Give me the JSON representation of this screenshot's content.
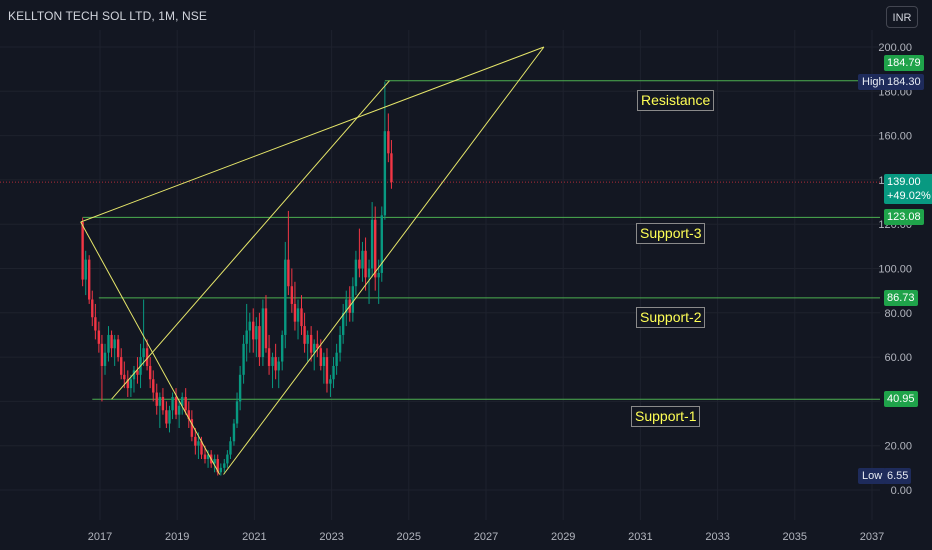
{
  "header": {
    "title": "KELLTON TECH SOL LTD, 1M, NSE",
    "currency": "INR"
  },
  "chart_data": {
    "type": "candlestick",
    "title": "KELLTON TECH SOL LTD, 1M, NSE",
    "yaxis_ticks": [
      "0.00",
      "20.00",
      "40.00",
      "60.00",
      "80.00",
      "100.00",
      "120.00",
      "140.00",
      "160.00",
      "180.00",
      "200.00"
    ],
    "ylim": [
      0,
      200
    ],
    "xaxis_ticks": [
      "2017",
      "2019",
      "2021",
      "2023",
      "2025",
      "2027",
      "2029",
      "2031",
      "2033",
      "2035",
      "2037"
    ],
    "levels": [
      {
        "name": "Resistance",
        "value": 184.79,
        "label": "184.79"
      },
      {
        "name": "Support-3",
        "value": 123.08,
        "label": "123.08"
      },
      {
        "name": "Support-2",
        "value": 86.73,
        "label": "86.73"
      },
      {
        "name": "Support-1",
        "value": 40.95,
        "label": "40.95"
      }
    ],
    "last_price": {
      "value": 139.0,
      "label": "139.00",
      "change": "+49.02%"
    },
    "high": {
      "label": "High",
      "value": "184.30"
    },
    "low": {
      "label": "Low",
      "value": "6.55"
    },
    "trend_lines": [
      {
        "from": [
          2016.5,
          121
        ],
        "to": [
          2020.1,
          7
        ]
      },
      {
        "from": [
          2017.3,
          41
        ],
        "to": [
          2024.5,
          184.8
        ]
      },
      {
        "from": [
          2020.2,
          7
        ],
        "to": [
          2028.5,
          200
        ]
      },
      {
        "from": [
          2016.5,
          121
        ],
        "to": [
          2028.5,
          200
        ]
      }
    ],
    "candles": [
      [
        2016.55,
        121,
        123,
        92,
        95
      ],
      [
        2016.63,
        95,
        108,
        88,
        104
      ],
      [
        2016.72,
        104,
        106,
        84,
        86
      ],
      [
        2016.8,
        86,
        90,
        74,
        78
      ],
      [
        2016.88,
        78,
        84,
        68,
        72
      ],
      [
        2016.97,
        72,
        76,
        62,
        66
      ],
      [
        2017.05,
        66,
        70,
        40,
        56
      ],
      [
        2017.13,
        56,
        66,
        52,
        62
      ],
      [
        2017.22,
        62,
        74,
        58,
        70
      ],
      [
        2017.3,
        70,
        72,
        60,
        64
      ],
      [
        2017.38,
        64,
        70,
        56,
        68
      ],
      [
        2017.47,
        68,
        70,
        58,
        60
      ],
      [
        2017.55,
        60,
        64,
        50,
        52
      ],
      [
        2017.63,
        52,
        58,
        46,
        50
      ],
      [
        2017.72,
        50,
        54,
        42,
        46
      ],
      [
        2017.8,
        46,
        52,
        42,
        50
      ],
      [
        2017.88,
        50,
        56,
        44,
        54
      ],
      [
        2017.97,
        54,
        60,
        48,
        52
      ],
      [
        2018.05,
        52,
        66,
        46,
        60
      ],
      [
        2018.13,
        60,
        86,
        56,
        64
      ],
      [
        2018.22,
        64,
        68,
        54,
        56
      ],
      [
        2018.3,
        56,
        60,
        46,
        50
      ],
      [
        2018.38,
        50,
        54,
        40,
        44
      ],
      [
        2018.47,
        44,
        48,
        34,
        38
      ],
      [
        2018.55,
        38,
        44,
        28,
        42
      ],
      [
        2018.63,
        42,
        46,
        34,
        36
      ],
      [
        2018.72,
        36,
        40,
        28,
        30
      ],
      [
        2018.8,
        30,
        38,
        26,
        36
      ],
      [
        2018.88,
        36,
        44,
        32,
        42
      ],
      [
        2018.97,
        42,
        46,
        32,
        34
      ],
      [
        2019.05,
        34,
        40,
        28,
        38
      ],
      [
        2019.13,
        38,
        44,
        34,
        42
      ],
      [
        2019.22,
        42,
        46,
        34,
        36
      ],
      [
        2019.3,
        36,
        40,
        28,
        32
      ],
      [
        2019.38,
        32,
        36,
        22,
        24
      ],
      [
        2019.47,
        24,
        28,
        16,
        20
      ],
      [
        2019.55,
        20,
        26,
        14,
        22
      ],
      [
        2019.63,
        22,
        24,
        14,
        16
      ],
      [
        2019.72,
        16,
        20,
        12,
        14
      ],
      [
        2019.8,
        14,
        18,
        10,
        16
      ],
      [
        2019.88,
        16,
        18,
        10,
        12
      ],
      [
        2019.97,
        12,
        16,
        8,
        14
      ],
      [
        2020.05,
        14,
        16,
        6.55,
        8
      ],
      [
        2020.13,
        8,
        12,
        6.55,
        10
      ],
      [
        2020.22,
        10,
        14,
        8,
        12
      ],
      [
        2020.3,
        12,
        18,
        10,
        16
      ],
      [
        2020.38,
        16,
        24,
        14,
        22
      ],
      [
        2020.47,
        22,
        32,
        20,
        30
      ],
      [
        2020.55,
        30,
        44,
        28,
        40
      ],
      [
        2020.63,
        40,
        56,
        36,
        52
      ],
      [
        2020.72,
        52,
        70,
        48,
        66
      ],
      [
        2020.8,
        66,
        84,
        58,
        72
      ],
      [
        2020.88,
        72,
        80,
        62,
        76
      ],
      [
        2020.97,
        76,
        82,
        62,
        68
      ],
      [
        2021.05,
        68,
        78,
        60,
        74
      ],
      [
        2021.13,
        74,
        80,
        56,
        60
      ],
      [
        2021.22,
        60,
        86,
        56,
        82
      ],
      [
        2021.3,
        82,
        88,
        62,
        64
      ],
      [
        2021.38,
        64,
        70,
        52,
        56
      ],
      [
        2021.47,
        56,
        62,
        46,
        60
      ],
      [
        2021.55,
        60,
        66,
        50,
        54
      ],
      [
        2021.63,
        54,
        60,
        46,
        58
      ],
      [
        2021.72,
        58,
        72,
        54,
        70
      ],
      [
        2021.8,
        70,
        112,
        64,
        104
      ],
      [
        2021.88,
        104,
        126,
        88,
        92
      ],
      [
        2021.97,
        92,
        100,
        80,
        84
      ],
      [
        2022.05,
        84,
        94,
        72,
        76
      ],
      [
        2022.13,
        76,
        86,
        68,
        82
      ],
      [
        2022.22,
        82,
        88,
        70,
        74
      ],
      [
        2022.3,
        74,
        80,
        62,
        66
      ],
      [
        2022.38,
        66,
        72,
        58,
        70
      ],
      [
        2022.47,
        70,
        74,
        58,
        62
      ],
      [
        2022.55,
        62,
        68,
        54,
        66
      ],
      [
        2022.63,
        66,
        72,
        60,
        64
      ],
      [
        2022.72,
        64,
        68,
        54,
        56
      ],
      [
        2022.8,
        56,
        62,
        48,
        60
      ],
      [
        2022.88,
        60,
        64,
        44,
        48
      ],
      [
        2022.97,
        48,
        52,
        42,
        50
      ],
      [
        2023.05,
        50,
        60,
        46,
        56
      ],
      [
        2023.13,
        56,
        66,
        52,
        62
      ],
      [
        2023.22,
        62,
        74,
        58,
        70
      ],
      [
        2023.3,
        70,
        84,
        66,
        80
      ],
      [
        2023.38,
        80,
        90,
        74,
        86
      ],
      [
        2023.47,
        86,
        92,
        76,
        80
      ],
      [
        2023.55,
        80,
        96,
        76,
        92
      ],
      [
        2023.63,
        92,
        108,
        88,
        104
      ],
      [
        2023.72,
        104,
        118,
        96,
        100
      ],
      [
        2023.8,
        100,
        112,
        94,
        108
      ],
      [
        2023.88,
        108,
        114,
        90,
        96
      ],
      [
        2023.97,
        96,
        104,
        84,
        100
      ],
      [
        2024.05,
        100,
        130,
        96,
        122
      ],
      [
        2024.13,
        122,
        128,
        90,
        96
      ],
      [
        2024.22,
        96,
        104,
        84,
        98
      ],
      [
        2024.3,
        98,
        128,
        94,
        124
      ],
      [
        2024.38,
        124,
        184.3,
        122,
        162
      ],
      [
        2024.47,
        162,
        170,
        148,
        152
      ],
      [
        2024.55,
        152,
        158,
        136,
        139
      ]
    ]
  },
  "annotations": {
    "resistance": "Resistance",
    "support3": "Support-3",
    "support2": "Support-2",
    "support1": "Support-1"
  },
  "price_labels": {
    "resistance": "184.79",
    "high_tag": "High",
    "high": "184.30",
    "current": "139.00",
    "change": "+49.02%",
    "support3": "123.08",
    "support2": "86.73",
    "support1": "40.95",
    "low_tag": "Low",
    "low": "6.55"
  },
  "colors": {
    "background": "#131722",
    "up": "#089981",
    "down": "#f23645",
    "level_line": "#4caf50",
    "trend_line": "#e6e66a",
    "annotation_text": "#ffff55"
  }
}
